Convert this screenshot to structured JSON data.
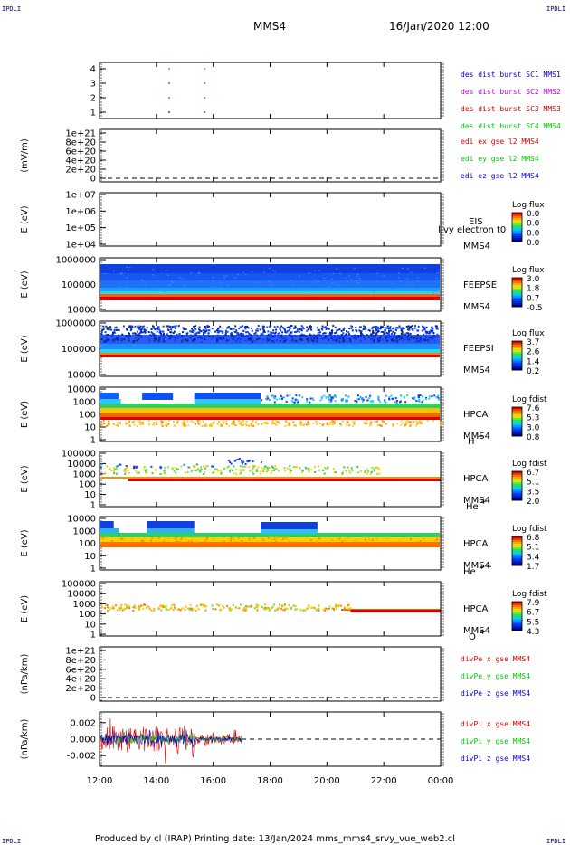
{
  "corners": {
    "left": "IPDLI",
    "right": "IPDLI"
  },
  "header": {
    "title": "MMS4",
    "datetime": "16/Jan/2020 12:00"
  },
  "footer": "Produced by cl (IRAP)   Printing date: 13/Jan/2024   mms_mms4_srvy_vue_web2.cl",
  "colors": {
    "mms1": "#0000cc",
    "mms2": "#cc00cc",
    "mms3": "#cc0000",
    "mms4": "#00cc00",
    "x": "#dd0000",
    "y": "#00cc00",
    "z": "#0000cc"
  },
  "chart_data": [
    {
      "type": "scatter",
      "panel": "burst",
      "yticks": [
        "1",
        "2",
        "3",
        "4"
      ],
      "legend": [
        "des dist burst SC1 MMS1",
        "des dist burst SC2 MMS2",
        "des dist burst SC3 MMS3",
        "des dist burst SC4 MMS4"
      ],
      "series": [
        {
          "sc": 1,
          "x": [
            "14:25",
            "15:40"
          ]
        },
        {
          "sc": 2,
          "x": [
            "14:25",
            "15:40"
          ]
        },
        {
          "sc": 3,
          "x": [
            "14:25",
            "15:40"
          ]
        },
        {
          "sc": 4,
          "x": [
            "14:25",
            "15:40"
          ]
        }
      ]
    },
    {
      "type": "line",
      "panel": "edi",
      "ylabel": "(mV/m)",
      "yticks": [
        "0",
        "2e+20",
        "4e+20",
        "6e+20",
        "8e+20",
        "1e+21"
      ],
      "legend": [
        "edi ex gse l2 MMS4",
        "edi ey gse l2 MMS4",
        "edi ez gse l2 MMS4"
      ]
    },
    {
      "type": "heatmap",
      "panel": "EIS",
      "ylabel": "E (eV)",
      "yticks": [
        "1e+04",
        "1e+05",
        "1e+06",
        "1e+07"
      ],
      "labels": [
        "EIS",
        "MMS4"
      ],
      "overlay": "l.vy electron t0",
      "colorbar": {
        "title": "Log flux",
        "ticks": [
          "0.0",
          "0.0",
          "0.0",
          "0.0"
        ]
      }
    },
    {
      "type": "heatmap",
      "panel": "FEEPSE",
      "ylabel": "E (eV)",
      "yticks": [
        "10000",
        "100000",
        "1000000"
      ],
      "labels": [
        "FEEPSE",
        "MMS4"
      ],
      "colorbar": {
        "title": "Log flux",
        "ticks": [
          "3.0",
          "1.8",
          "0.7",
          "-0.5"
        ]
      },
      "data_range": [
        "12:00",
        "00:00"
      ]
    },
    {
      "type": "heatmap",
      "panel": "FEEPSI",
      "ylabel": "E (eV)",
      "yticks": [
        "10000",
        "100000",
        "1000000"
      ],
      "labels": [
        "FEEPSI",
        "MMS4"
      ],
      "colorbar": {
        "title": "Log flux",
        "ticks": [
          "3.7",
          "2.6",
          "1.4",
          "0.2"
        ]
      },
      "data_range": [
        "12:00",
        "00:00"
      ]
    },
    {
      "type": "heatmap",
      "panel": "HPCA H+",
      "ylabel": "E (eV)",
      "yticks": [
        "1",
        "10",
        "100",
        "1000",
        "10000"
      ],
      "labels": [
        "HPCA",
        "MMS4"
      ],
      "species": "H",
      "colorbar": {
        "title": "Log fdist",
        "ticks": [
          "7.6",
          "5.3",
          "3.0",
          "0.8"
        ]
      }
    },
    {
      "type": "heatmap",
      "panel": "HPCA He+",
      "ylabel": "E (eV)",
      "yticks": [
        "1",
        "10",
        "100",
        "1000",
        "10000",
        "100000"
      ],
      "labels": [
        "HPCA",
        "MMS4"
      ],
      "species": "He",
      "colorbar": {
        "title": "Log fdist",
        "ticks": [
          "6.7",
          "5.1",
          "3.5",
          "2.0"
        ]
      }
    },
    {
      "type": "heatmap",
      "panel": "HPCA He++",
      "ylabel": "E (eV)",
      "yticks": [
        "1",
        "10",
        "100",
        "1000",
        "10000"
      ],
      "labels": [
        "HPCA",
        "MMS4"
      ],
      "species": "He",
      "colorbar": {
        "title": "Log fdist",
        "ticks": [
          "6.8",
          "5.1",
          "3.4",
          "1.7"
        ]
      }
    },
    {
      "type": "heatmap",
      "panel": "HPCA O+",
      "ylabel": "E (eV)",
      "yticks": [
        "1",
        "10",
        "100",
        "1000",
        "10000",
        "100000"
      ],
      "labels": [
        "HPCA",
        "MMS4"
      ],
      "species": "O",
      "colorbar": {
        "title": "Log fdist",
        "ticks": [
          "7.9",
          "6.7",
          "5.5",
          "4.3"
        ]
      }
    },
    {
      "type": "line",
      "panel": "divPe",
      "ylabel": "(nPa/km)",
      "yticks": [
        "0",
        "2e+20",
        "4e+20",
        "6e+20",
        "8e+20",
        "1e+21"
      ],
      "legend": [
        "divPe x gse MMS4",
        "divPe y gse MMS4",
        "divPe z gse MMS4"
      ]
    },
    {
      "type": "line",
      "panel": "divPi",
      "ylabel": "(nPa/km)",
      "yticks": [
        "-0.002",
        "0.000",
        "0.002"
      ],
      "ylim": [
        -0.0033,
        0.0033
      ],
      "legend": [
        "divPi x gse MMS4",
        "divPi y gse MMS4",
        "divPi z gse MMS4"
      ],
      "data_range": [
        "12:00",
        "17:00"
      ]
    }
  ],
  "xaxis": {
    "ticks": [
      "12:00",
      "14:00",
      "16:00",
      "18:00",
      "20:00",
      "22:00",
      "00:00"
    ]
  }
}
